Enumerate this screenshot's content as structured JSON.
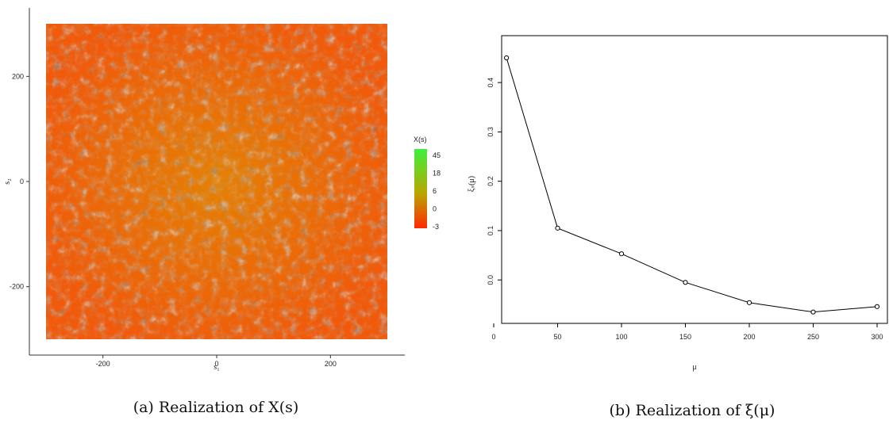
{
  "chart_data": [
    {
      "type": "heatmap",
      "xlabel": "s₁",
      "ylabel": "s₂",
      "xlim": [
        -300,
        300
      ],
      "ylim": [
        -300,
        300
      ],
      "xticks": [
        -200,
        0,
        200
      ],
      "yticks": [
        -200,
        0,
        200
      ],
      "legend": {
        "title": "X(s)",
        "ticks": [
          45,
          18,
          6,
          0,
          -3
        ],
        "colors": {
          "high": "#3cf03c",
          "mid": "#b8a800",
          "low": "#ff2a00"
        },
        "position": "right"
      },
      "caption": "(a) Realization of X(s)"
    },
    {
      "type": "line",
      "x": [
        10,
        50,
        100,
        150,
        200,
        250,
        300
      ],
      "y": [
        0.45,
        0.105,
        0.053,
        -0.005,
        -0.046,
        -0.065,
        -0.054
      ],
      "xlim": [
        0,
        300
      ],
      "xticks": [
        0,
        50,
        100,
        150,
        200,
        250,
        300
      ],
      "yticks": [
        0.0,
        0.1,
        0.2,
        0.3,
        0.4
      ],
      "ytick_labels": [
        "0.0",
        "0.1",
        "0.2",
        "0.3",
        "0.4"
      ],
      "xlabel": "μ",
      "ylabel": "ξₛ(μ)",
      "markers": "open-circle",
      "caption": "(b) Realization of ξ(μ)"
    }
  ]
}
